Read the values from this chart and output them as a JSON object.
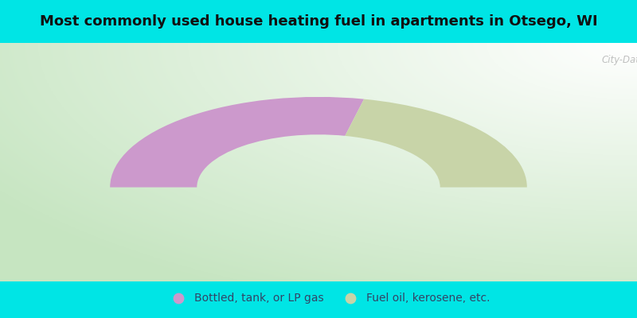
{
  "title": "Most commonly used house heating fuel in apartments in Otsego, WI",
  "title_fontsize": 13,
  "cyan_color": "#00e5e5",
  "chart_bg_color": "#e8f5e0",
  "segments": [
    {
      "label": "Bottled, tank, or LP gas",
      "value": 57,
      "color": "#cc99cc"
    },
    {
      "label": "Fuel oil, kerosene, etc.",
      "value": 43,
      "color": "#c8d4a8"
    }
  ],
  "inner_r": 0.42,
  "outer_r": 0.72,
  "watermark": "City-Data.com",
  "legend_fontsize": 10,
  "legend_text_color": "#334466"
}
